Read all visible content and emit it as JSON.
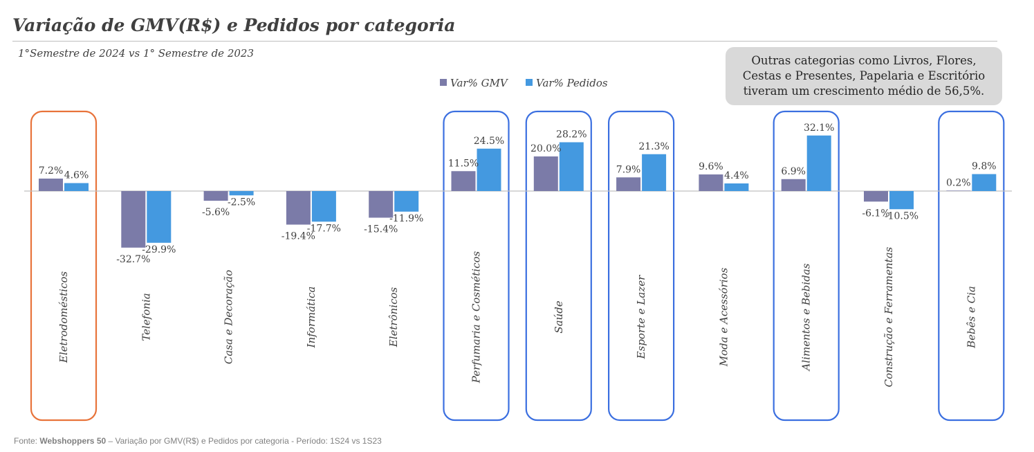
{
  "header": {
    "title": "Variação de GMV(R$) e Pedidos por categoria",
    "subtitle": "1°Semestre de 2024 vs 1° Semestre de 2023"
  },
  "callout": {
    "text": "Outras categorias como Livros, Flores, Cestas e Presentes, Papelaria e Escritório tiveram um crescimento médio de 56,5%."
  },
  "footer": {
    "prefix": "Fonte: ",
    "source": "Webshoppers 50",
    "rest": " – Variação por GMV(R$) e Pedidos por categoria - Período: 1S24 vs 1S23"
  },
  "colors": {
    "gmv": "#7b7ba8",
    "pedidos": "#4499e0",
    "highlight_orange": "#e8733a",
    "highlight_blue": "#3b6fe0",
    "axis": "#bfbfbf"
  },
  "chart_data": {
    "type": "bar",
    "categories": [
      "Eletrodomésticos",
      "Telefonia",
      "Casa e Decoração",
      "Informática",
      "Eletrônicos",
      "Perfumaria e Cosméticos",
      "Saúde",
      "Esporte e Lazer",
      "Moda e Acessórios",
      "Alimentos e Bebidas",
      "Construção e Ferramentas",
      "Bebês e Cia"
    ],
    "series": [
      {
        "name": "Var% GMV",
        "values": [
          7.2,
          -32.7,
          -5.6,
          -19.4,
          -15.4,
          11.5,
          20.0,
          7.9,
          9.6,
          6.9,
          -6.1,
          0.2
        ],
        "labels": [
          "7.2%",
          "-32.7%",
          "-5.6%",
          "-19.4%",
          "-15.4%",
          "11.5%",
          "20.0%",
          "7.9%",
          "9.6%",
          "6.9%",
          "-6.1%",
          "0.2%"
        ]
      },
      {
        "name": "Var% Pedidos",
        "values": [
          4.6,
          -29.9,
          -2.5,
          -17.7,
          -11.9,
          24.5,
          28.2,
          21.3,
          4.4,
          32.1,
          -10.5,
          9.8
        ],
        "labels": [
          "4.6%",
          "-29.9%",
          "-2.5%",
          "-17.7%",
          "-11.9%",
          "24.5%",
          "28.2%",
          "21.3%",
          "4.4%",
          "32.1%",
          "-10.5%",
          "9.8%"
        ]
      }
    ],
    "highlights": [
      {
        "category": "Eletrodomésticos",
        "color": "orange"
      },
      {
        "category": "Perfumaria e Cosméticos",
        "color": "blue"
      },
      {
        "category": "Saúde",
        "color": "blue"
      },
      {
        "category": "Esporte e Lazer",
        "color": "blue"
      },
      {
        "category": "Alimentos e Bebidas",
        "color": "blue"
      },
      {
        "category": "Bebês e Cia",
        "color": "blue"
      }
    ],
    "legend_position": "top-center",
    "grid": false
  }
}
